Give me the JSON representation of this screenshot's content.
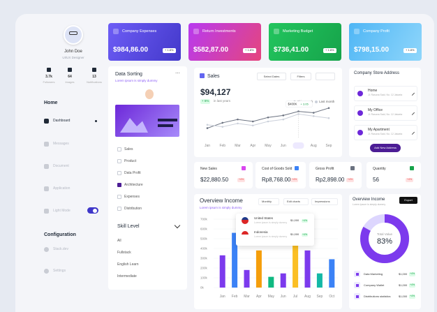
{
  "profile": {
    "name": "John Doe",
    "role": "UI/UX Designer",
    "stats": [
      {
        "value": "3.7k",
        "label": "Followers"
      },
      {
        "value": "64",
        "label": "Images"
      },
      {
        "value": "13",
        "label": "Notifications"
      }
    ]
  },
  "nav": {
    "home": "Home",
    "items": [
      "Dashboard",
      "Messages",
      "Document",
      "Application",
      "Light Mode"
    ],
    "configuration": "Configuration",
    "config_items": [
      "Stack.dev",
      "Settings"
    ]
  },
  "cards": [
    {
      "title": "Company Expenses",
      "value": "$984,86.00",
      "change": "+ 1.8%"
    },
    {
      "title": "Return Investments",
      "value": "$582,87.00",
      "change": "+ 1.8%"
    },
    {
      "title": "Marketing Budget",
      "value": "$736,41.00",
      "change": "+ 1.8%"
    },
    {
      "title": "Company Profit",
      "value": "$798,15.00",
      "change": "+ 1.8%"
    }
  ],
  "data_sorting": {
    "title": "Data Sorting",
    "subtitle": "Lorem ipsum is simply dummy",
    "options": [
      {
        "label": "Sales",
        "checked": false
      },
      {
        "label": "Product",
        "checked": false
      },
      {
        "label": "Data Profit",
        "checked": false
      },
      {
        "label": "Architecture",
        "checked": true
      },
      {
        "label": "Expenses",
        "checked": false
      },
      {
        "label": "Distribution",
        "checked": false
      }
    ]
  },
  "skill_level": {
    "title": "Skill Level",
    "options": [
      "All",
      "Fullstack",
      "English Learn",
      "Intermediate"
    ]
  },
  "sales": {
    "title": "Sales",
    "buttons": [
      "Select Dates",
      "Filters"
    ],
    "total": "$94,127",
    "change": "+ 6%",
    "change_note": "in last years",
    "tooltip": {
      "value": "$400K",
      "change": "+ 3.05"
    }
  },
  "address": {
    "title": "Company Store Address",
    "items": [
      {
        "name": "Home",
        "detail": "Jl. Rasuna Said, No. 12 Jakarta"
      },
      {
        "name": "My Office",
        "detail": "Jl. Rasuna Said, No. 12 Jakarta"
      },
      {
        "name": "My Apartment",
        "detail": "Jl. Rasuna Said, No. 12 Jakarta"
      }
    ],
    "button": "Add New Address"
  },
  "stats": [
    {
      "title": "New Sales",
      "value": "$22,880.50",
      "badge": "+4%"
    },
    {
      "title": "Cost of Goods Sold",
      "value": "Rp8,768.00",
      "badge": "+4%"
    },
    {
      "title": "Gross Profit",
      "value": "Rp2,898.00",
      "badge": "+4%"
    },
    {
      "title": "Quantity",
      "value": "56",
      "badge": "+4%"
    }
  ],
  "chart_data": [
    {
      "type": "line",
      "categories": [
        "Jan",
        "Feb",
        "Mar",
        "Apr",
        "May",
        "Jun",
        "Jul",
        "Aug",
        "Sep"
      ],
      "series": [
        {
          "name": "This month",
          "color": "#6b7280",
          "values": [
            150,
            230,
            280,
            250,
            310,
            340,
            400,
            380,
            450
          ]
        },
        {
          "name": "Last month",
          "color": "#cbd0da",
          "values": [
            200,
            170,
            220,
            190,
            250,
            280,
            360,
            330,
            300
          ]
        }
      ],
      "ylim": [
        0,
        500
      ]
    },
    {
      "type": "bar",
      "title": "Overview Income",
      "subtitle": "Lorem ipsum is simply dummy",
      "controls": [
        "Monthly",
        "Edit charts",
        "Impressions"
      ],
      "categories": [
        "Jan",
        "Feb",
        "Mar",
        "Apr",
        "May",
        "Jun",
        "Jul",
        "Aug",
        "Sep",
        "Oct"
      ],
      "values": [
        330000,
        560000,
        180000,
        380000,
        110000,
        145000,
        650000,
        380000,
        145000,
        290000
      ],
      "colors": [
        "#7c3aed",
        "#3b82f6",
        "#7c3aed",
        "#f59e0b",
        "#10b981",
        "#7c3aed",
        "#fbbf24",
        "#7c3aed",
        "#14b8a6",
        "#3b82f6"
      ],
      "ylim": [
        0,
        700000
      ],
      "yticks": [
        {
          "value": 0,
          "label": "0k"
        },
        {
          "value": 100000,
          "label": "100k"
        },
        {
          "value": 200000,
          "label": "200k"
        },
        {
          "value": 300000,
          "label": "300k"
        },
        {
          "value": 400000,
          "label": "400k"
        },
        {
          "value": 500000,
          "label": "500k"
        },
        {
          "value": 600000,
          "label": "600k"
        },
        {
          "value": 700000,
          "label": "700k"
        }
      ],
      "grid": true,
      "popup": [
        {
          "country": "United States",
          "note": "Lorem ipsum is simply dummy",
          "amount": "$1,000",
          "change": "+4%"
        },
        {
          "country": "Indonesia",
          "note": "Lorem ipsum is simply dummy",
          "amount": "$1,000",
          "change": "+4%"
        }
      ]
    },
    {
      "type": "donut",
      "title": "Overview Income",
      "subtitle": "Lorem ipsum is simply dummy",
      "button": "Export",
      "center_label": "Total Value",
      "value": 83,
      "value_label": "83%",
      "color": "#7c3aed",
      "legend": [
        {
          "name": "Data Marketing",
          "amount": "$1,000",
          "change": "+4%"
        },
        {
          "name": "Company Wallet",
          "amount": "$1,000",
          "change": "+4%"
        },
        {
          "name": "Distributions statistics",
          "amount": "$1,000",
          "change": "+4%"
        }
      ]
    }
  ]
}
